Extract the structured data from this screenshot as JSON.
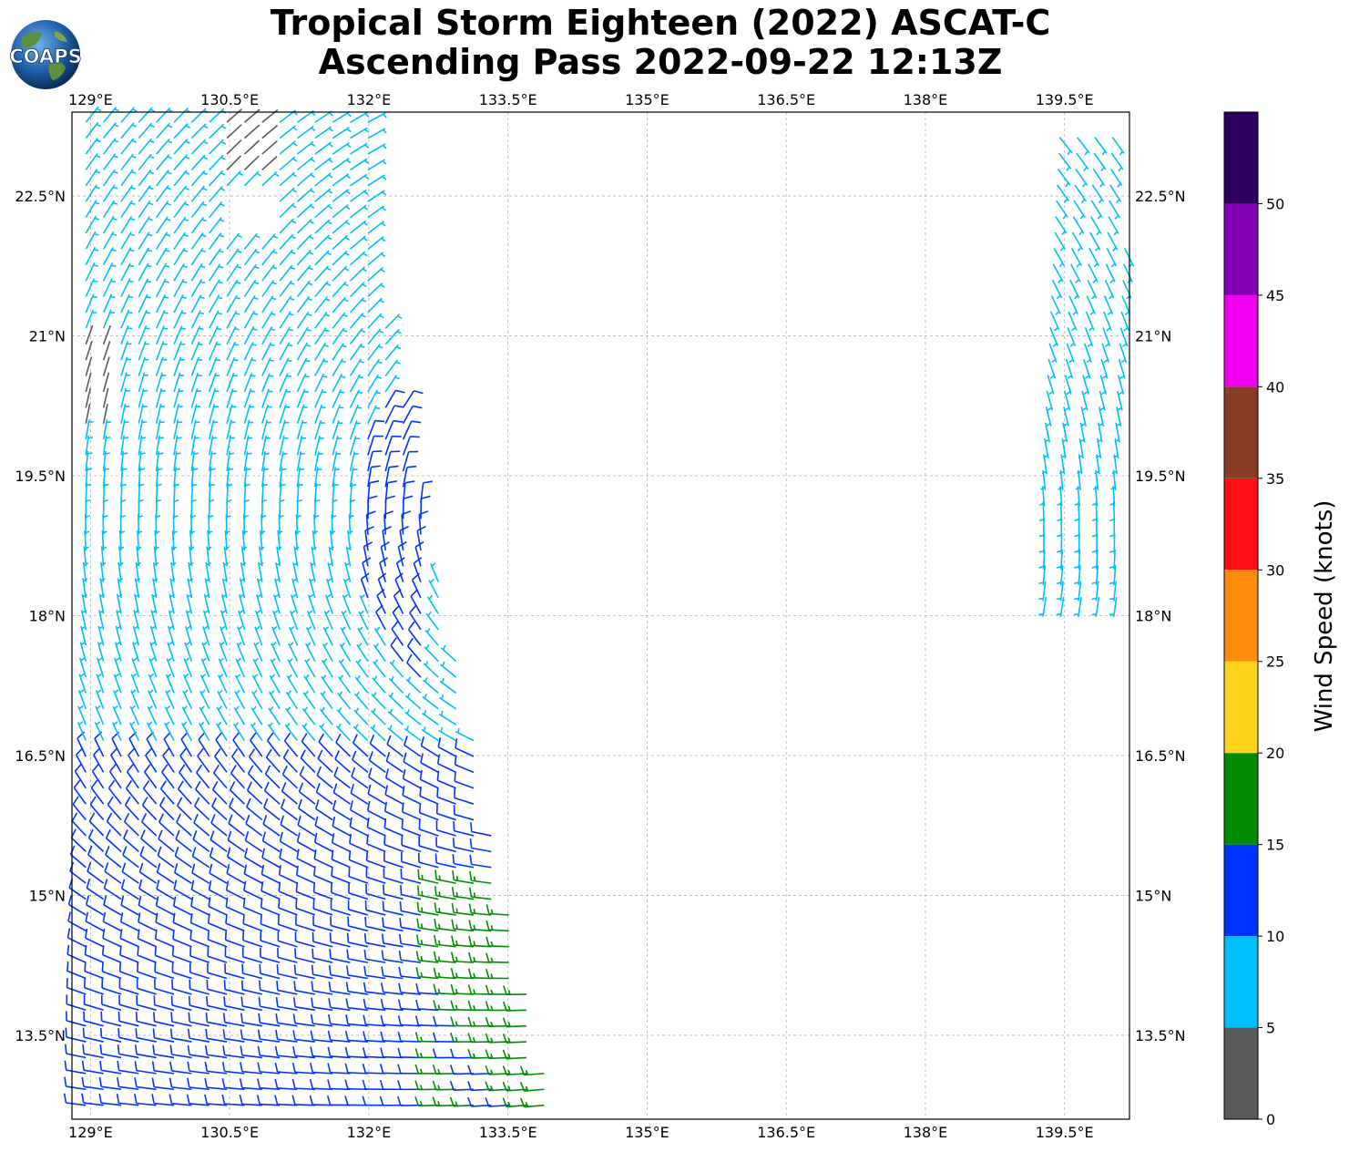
{
  "title": {
    "line1": "Tropical Storm Eighteen (2022) ASCAT-C",
    "line2": "Ascending Pass 2022-09-22 12:13Z"
  },
  "logo": {
    "text": "COAPS",
    "icon": "globe-icon"
  },
  "map": {
    "lon_range": [
      128.8,
      140.2
    ],
    "lat_range": [
      12.6,
      23.4
    ],
    "lon_ticks": [
      {
        "value": 129.0,
        "label": "129°E"
      },
      {
        "value": 130.5,
        "label": "130.5°E"
      },
      {
        "value": 132.0,
        "label": "132°E"
      },
      {
        "value": 133.5,
        "label": "133.5°E"
      },
      {
        "value": 135.0,
        "label": "135°E"
      },
      {
        "value": 136.5,
        "label": "136.5°E"
      },
      {
        "value": 138.0,
        "label": "138°E"
      },
      {
        "value": 139.5,
        "label": "139.5°E"
      }
    ],
    "lat_ticks": [
      {
        "value": 22.5,
        "label": "22.5°N"
      },
      {
        "value": 21.0,
        "label": "21°N"
      },
      {
        "value": 19.5,
        "label": "19.5°N"
      },
      {
        "value": 18.0,
        "label": "18°N"
      },
      {
        "value": 16.5,
        "label": "16.5°N"
      },
      {
        "value": 15.0,
        "label": "15°N"
      },
      {
        "value": 13.5,
        "label": "13.5°N"
      }
    ],
    "gridlines": true
  },
  "colorbar": {
    "label": "Wind Speed (knots)",
    "bins": [
      {
        "min": 0,
        "max": 5,
        "color": "#595959"
      },
      {
        "min": 5,
        "max": 10,
        "color": "#00bfff"
      },
      {
        "min": 10,
        "max": 15,
        "color": "#0033ff"
      },
      {
        "min": 15,
        "max": 20,
        "color": "#008c00"
      },
      {
        "min": 20,
        "max": 25,
        "color": "#ffd21c"
      },
      {
        "min": 25,
        "max": 30,
        "color": "#ff8c0f"
      },
      {
        "min": 30,
        "max": 35,
        "color": "#ff0f14"
      },
      {
        "min": 35,
        "max": 40,
        "color": "#873c26"
      },
      {
        "min": 40,
        "max": 45,
        "color": "#f000f0"
      },
      {
        "min": 45,
        "max": 50,
        "color": "#8400b4"
      },
      {
        "min": 50,
        "max": 55,
        "color": "#2d005f"
      }
    ],
    "tick_labels": [
      "0",
      "5",
      "10",
      "15",
      "20",
      "25",
      "30",
      "35",
      "40",
      "45",
      "50"
    ]
  },
  "swaths": [
    {
      "name": "west",
      "lon_min": 128.8,
      "lon_max_south": 134.0,
      "lon_max_north": 132.0,
      "lat_min": 12.6,
      "lat_max": 23.4
    },
    {
      "name": "east",
      "lon_min": 139.3,
      "lon_max": 140.2,
      "lat_min": 18.1,
      "lat_max": 23.4
    }
  ]
}
